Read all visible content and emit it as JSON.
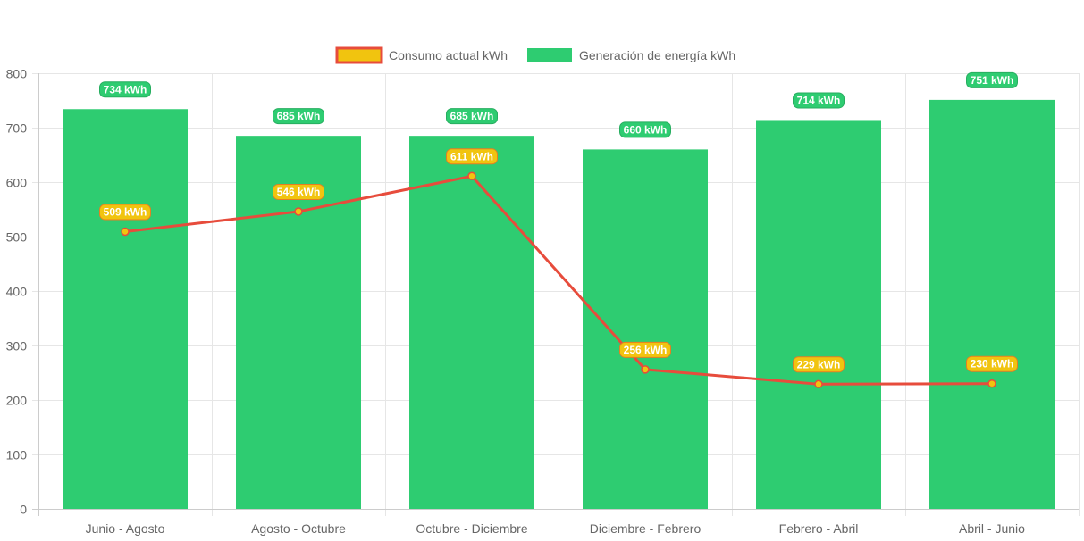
{
  "chart_data": {
    "type": "bar",
    "title": "",
    "xlabel": "",
    "ylabel": "",
    "ylim": [
      0,
      800
    ],
    "yticks": [
      0,
      100,
      200,
      300,
      400,
      500,
      600,
      700,
      800
    ],
    "grid": true,
    "legend_position": "top-center",
    "categories": [
      "Junio - Agosto",
      "Agosto - Octubre",
      "Octubre - Diciembre",
      "Diciembre - Febrero",
      "Febrero - Abril",
      "Abril - Junio"
    ],
    "series": [
      {
        "name": "Consumo actual kWh",
        "type": "line",
        "values": [
          509,
          546,
          611,
          256,
          229,
          230
        ],
        "labels": [
          "509 kWh",
          "546 kWh",
          "611 kWh",
          "256 kWh",
          "229 kWh",
          "230 kWh"
        ],
        "line_color": "#e74c3c",
        "fill_color": "#f1c40f"
      },
      {
        "name": "Generación de energía kWh",
        "type": "bar",
        "values": [
          734,
          685,
          685,
          660,
          714,
          751
        ],
        "labels": [
          "734 kWh",
          "685 kWh",
          "685 kWh",
          "660 kWh",
          "714 kWh",
          "751 kWh"
        ],
        "color": "#2ecc71"
      }
    ]
  }
}
